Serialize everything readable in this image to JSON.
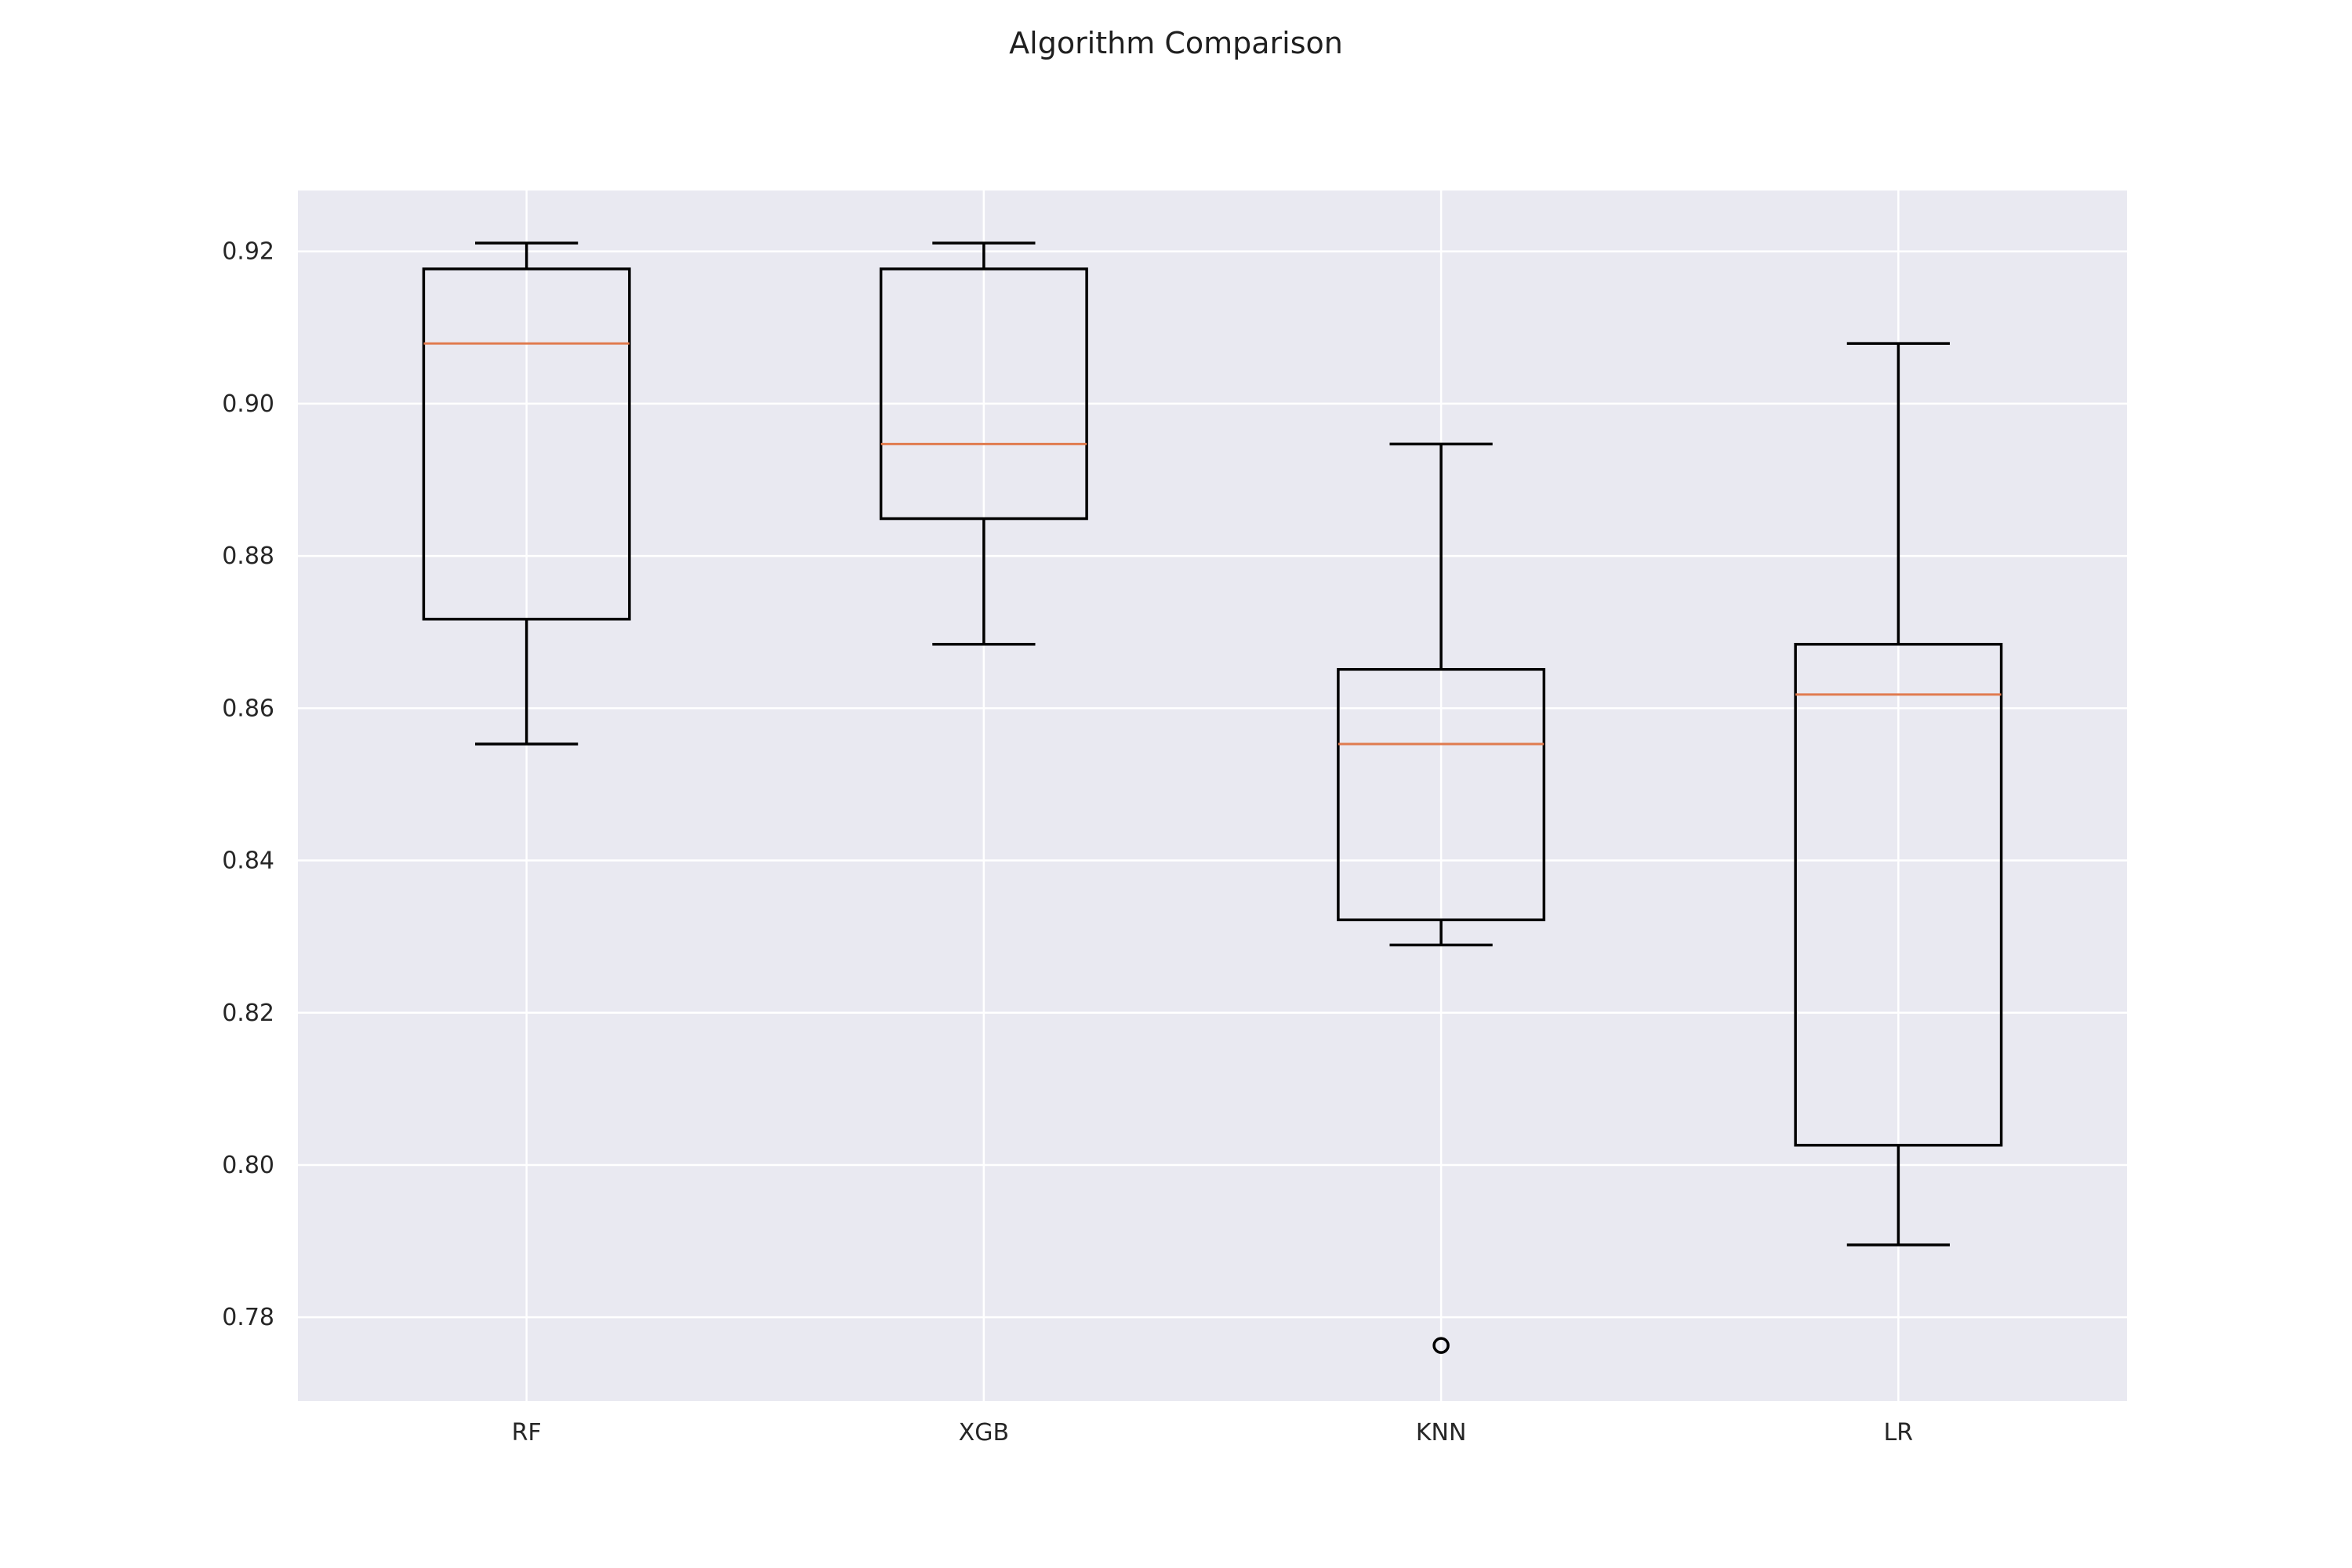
{
  "chart_data": {
    "type": "box",
    "title": "Algorithm Comparison",
    "xlabel": "",
    "ylabel": "",
    "categories": [
      "RF",
      "XGB",
      "KNN",
      "LR"
    ],
    "ylim": [
      0.769,
      0.928
    ],
    "yticks": [
      0.78,
      0.8,
      0.82,
      0.84,
      0.86,
      0.88,
      0.9,
      0.92
    ],
    "ytick_labels": [
      "0.78",
      "0.80",
      "0.82",
      "0.84",
      "0.86",
      "0.88",
      "0.90",
      "0.92"
    ],
    "grid": true,
    "boxes": [
      {
        "label": "RF",
        "whisker_low": 0.8553,
        "q1": 0.8717,
        "median": 0.9079,
        "q3": 0.9177,
        "whisker_high": 0.9211,
        "outliers": []
      },
      {
        "label": "XGB",
        "whisker_low": 0.8684,
        "q1": 0.8849,
        "median": 0.8947,
        "q3": 0.9177,
        "whisker_high": 0.9211,
        "outliers": []
      },
      {
        "label": "KNN",
        "whisker_low": 0.8289,
        "q1": 0.8322,
        "median": 0.8553,
        "q3": 0.8651,
        "whisker_high": 0.8947,
        "outliers": [
          0.7763
        ]
      },
      {
        "label": "LR",
        "whisker_low": 0.7895,
        "q1": 0.8026,
        "median": 0.8618,
        "q3": 0.8684,
        "whisker_high": 0.9079,
        "outliers": []
      }
    ],
    "colors": {
      "axes_background": "#e9e9f1",
      "grid": "#ffffff",
      "box": "#000000",
      "median": "#e07b4f",
      "text": "#262626"
    }
  }
}
